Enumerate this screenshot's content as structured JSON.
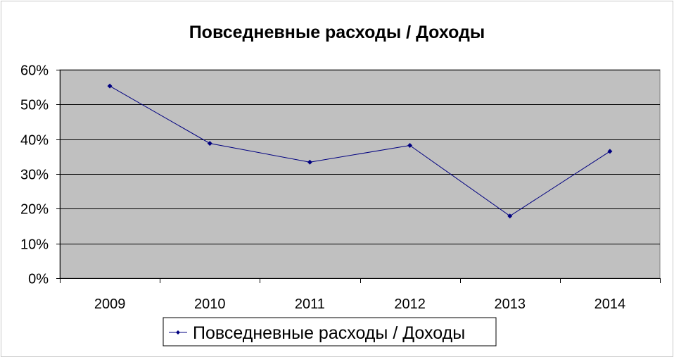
{
  "chart_data": {
    "type": "line",
    "title": "Повседневные расходы / Доходы",
    "categories": [
      "2009",
      "2010",
      "2011",
      "2012",
      "2013",
      "2014"
    ],
    "series": [
      {
        "name": "Повседневные расходы / Доходы",
        "values": [
          0.553,
          0.388,
          0.334,
          0.382,
          0.179,
          0.365
        ]
      }
    ],
    "y_ticks": [
      "0%",
      "10%",
      "20%",
      "30%",
      "40%",
      "50%",
      "60%"
    ],
    "ylim": [
      0,
      0.6
    ],
    "grid": true,
    "legend_position": "bottom",
    "colors": {
      "plot_background": "#c0c0c0",
      "series": "#000080",
      "gridline": "#000000"
    }
  }
}
